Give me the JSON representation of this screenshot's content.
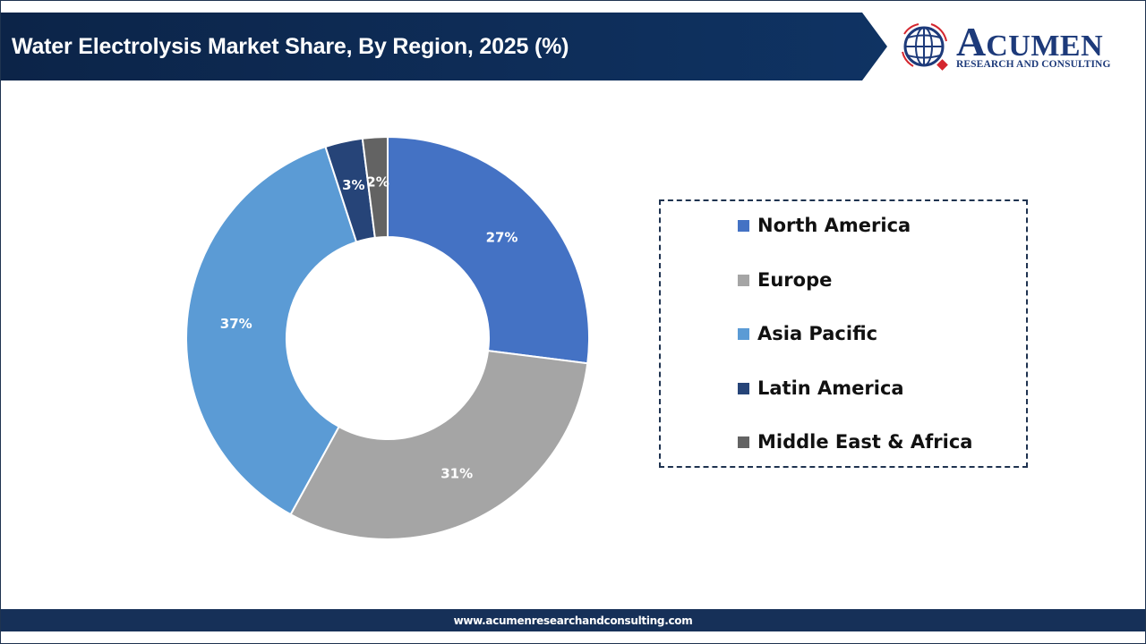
{
  "header": {
    "title": "Water Electrolysis Market Share, By Region, 2025 (%)",
    "banner_color": "#0f2d5c"
  },
  "logo": {
    "brand_initial": "A",
    "brand_rest": "CUMEN",
    "tagline": "RESEARCH AND CONSULTING",
    "icon": "globe-icon"
  },
  "chart_data": {
    "type": "pie",
    "variant": "donut",
    "title": "Water Electrolysis Market Share, By Region, 2025 (%)",
    "categories": [
      "North America",
      "Europe",
      "Asia Pacific",
      "Latin America",
      "Middle East & Africa"
    ],
    "values": [
      27,
      31,
      37,
      3,
      2
    ],
    "labels": [
      "27%",
      "31%",
      "37%",
      "3%",
      "2%"
    ],
    "colors": [
      "#4472c4",
      "#a5a5a5",
      "#5b9bd5",
      "#264478",
      "#636363"
    ],
    "start_angle_deg": 0,
    "direction": "clockwise",
    "legend_position": "right",
    "unit": "%"
  },
  "legend": {
    "items": [
      {
        "label": "North America",
        "color": "#4472c4"
      },
      {
        "label": "Europe",
        "color": "#a5a5a5"
      },
      {
        "label": "Asia Pacific",
        "color": "#5b9bd5"
      },
      {
        "label": "Latin America",
        "color": "#264478"
      },
      {
        "label": "Middle East & Africa",
        "color": "#636363"
      }
    ]
  },
  "footer": {
    "url": "www.acumenresearchandconsulting.com"
  }
}
